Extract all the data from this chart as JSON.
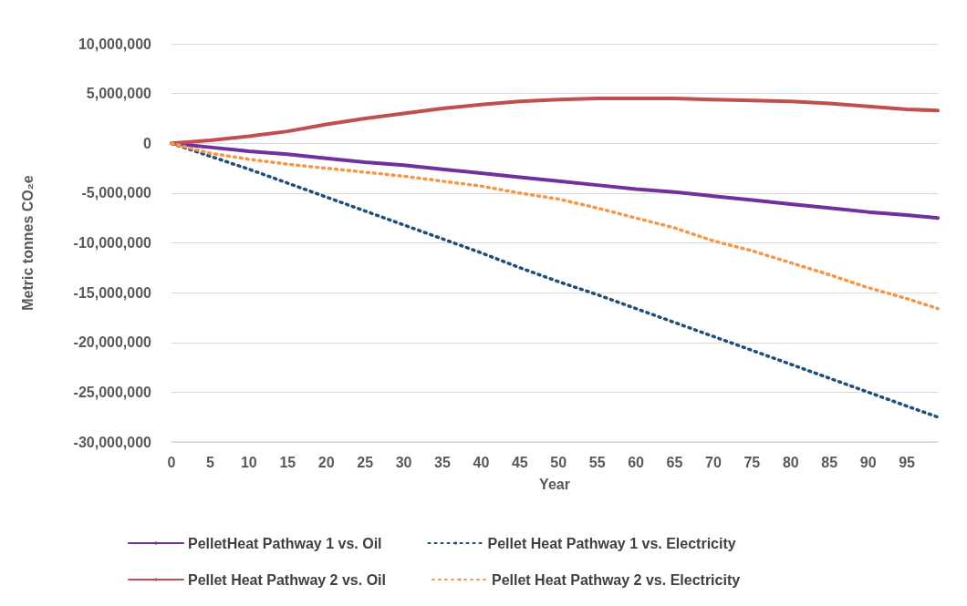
{
  "chart_data": {
    "type": "line",
    "xlabel": "Year",
    "ylabel": "Metric tonnes CO₂e",
    "x": [
      0,
      5,
      10,
      15,
      20,
      25,
      30,
      35,
      40,
      45,
      50,
      55,
      60,
      65,
      70,
      75,
      80,
      85,
      90,
      95,
      99
    ],
    "xlim": [
      0,
      99
    ],
    "xticks": [
      0,
      5,
      10,
      15,
      20,
      25,
      30,
      35,
      40,
      45,
      50,
      55,
      60,
      65,
      70,
      75,
      80,
      85,
      90,
      95
    ],
    "ylim": [
      -30000000,
      10000000
    ],
    "yticks": [
      {
        "value": -30000000,
        "label": "-30,000,000"
      },
      {
        "value": -25000000,
        "label": "-25,000,000"
      },
      {
        "value": -20000000,
        "label": "-20,000,000"
      },
      {
        "value": -15000000,
        "label": "-15,000,000"
      },
      {
        "value": -10000000,
        "label": "-10,000,000"
      },
      {
        "value": -5000000,
        "label": "-5,000,000"
      },
      0,
      {
        "value": 5000000,
        "label": "5,000,000"
      },
      {
        "value": 10000000,
        "label": "10,000,000"
      }
    ],
    "grid": "y",
    "legend": "bottom",
    "marker": "none",
    "series": [
      {
        "name": "PelletHeat Pathway 1 vs. Oil",
        "color": "#7030a0",
        "line_style": "solid",
        "values": [
          0,
          -400000,
          -800000,
          -1100000,
          -1500000,
          -1900000,
          -2200000,
          -2600000,
          -3000000,
          -3400000,
          -3800000,
          -4200000,
          -4600000,
          -4900000,
          -5300000,
          -5700000,
          -6100000,
          -6500000,
          -6900000,
          -7200000,
          -7500000
        ]
      },
      {
        "name": "Pellet Heat Pathway 1 vs. Electricity",
        "color": "#1f4e79",
        "line_style": "dotted",
        "values": [
          0,
          -1300000,
          -2600000,
          -4000000,
          -5400000,
          -6800000,
          -8200000,
          -9600000,
          -11000000,
          -12500000,
          -13900000,
          -15200000,
          -16600000,
          -18000000,
          -19400000,
          -20800000,
          -22200000,
          -23600000,
          -25000000,
          -26400000,
          -27500000
        ]
      },
      {
        "name": "Pellet Heat Pathway 2 vs. Oil",
        "color": "#c0504d",
        "line_style": "solid",
        "values": [
          0,
          300000,
          700000,
          1200000,
          1900000,
          2500000,
          3000000,
          3500000,
          3900000,
          4200000,
          4400000,
          4500000,
          4500000,
          4500000,
          4400000,
          4300000,
          4200000,
          4000000,
          3700000,
          3400000,
          3300000
        ]
      },
      {
        "name": "Pellet Heat Pathway 2 vs. Electricity",
        "color": "#f79646",
        "line_style": "dotted",
        "values": [
          0,
          -1000000,
          -1600000,
          -2100000,
          -2500000,
          -2900000,
          -3300000,
          -3800000,
          -4300000,
          -5000000,
          -5600000,
          -6500000,
          -7500000,
          -8500000,
          -9800000,
          -10800000,
          -12000000,
          -13200000,
          -14500000,
          -15600000,
          -16600000
        ]
      }
    ]
  }
}
